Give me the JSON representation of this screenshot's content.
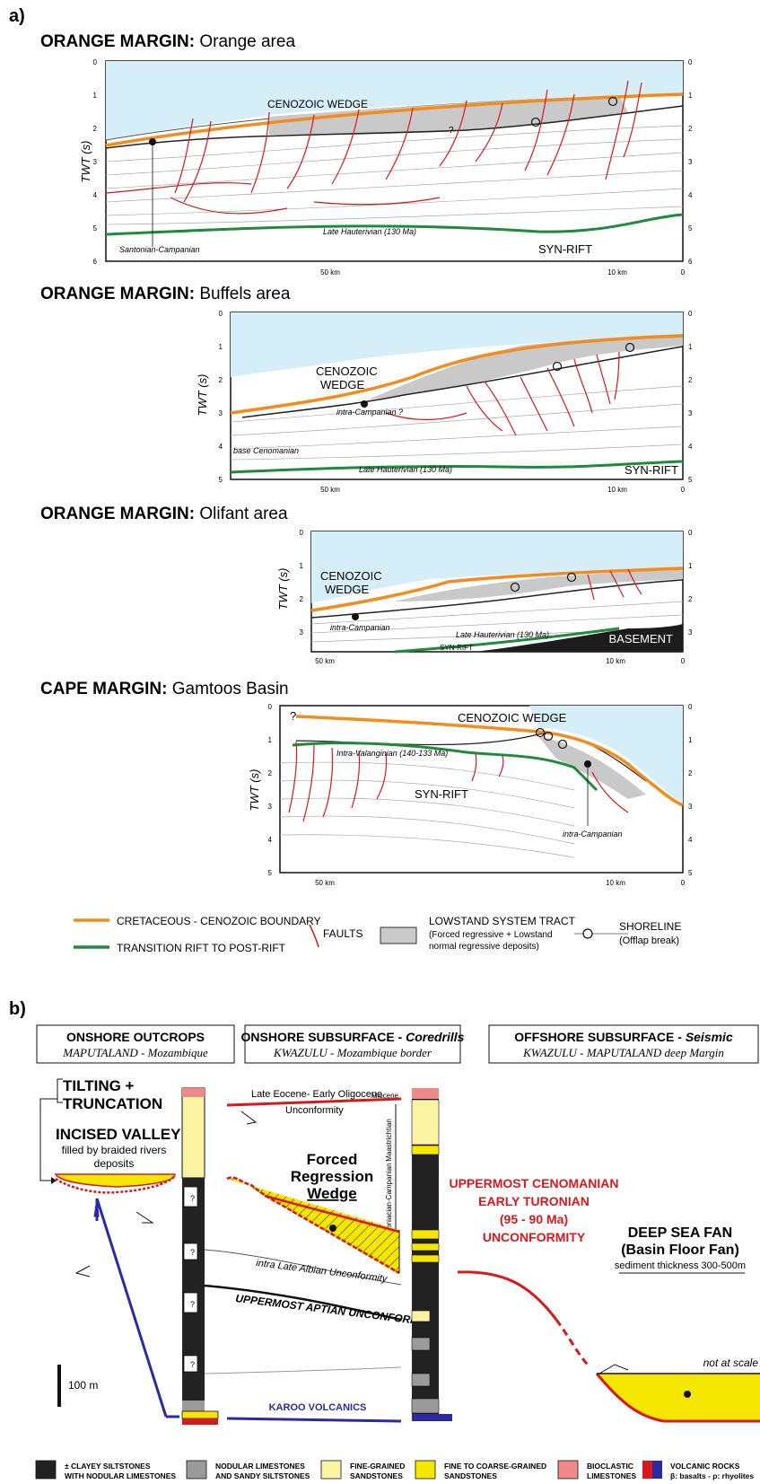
{
  "panel_a": {
    "label": "a)",
    "sections": [
      {
        "title_bold": "ORANGE MARGIN:",
        "title_rest": " Orange area",
        "depth_ticks": [
          "0",
          "1",
          "2",
          "3",
          "4",
          "5",
          "6"
        ],
        "axis_label": "TWT (s)",
        "distance_labels": [
          "50 km",
          "10 km",
          "0"
        ],
        "labels": {
          "wedge": "CENOZOIC  WEDGE",
          "hauterivian": "Late Hauterivian (130 Ma)",
          "synrift": "SYN-RIFT",
          "santonian": "Santonian-Campanian",
          "q": "?"
        }
      },
      {
        "title_bold": "ORANGE MARGIN:",
        "title_rest": " Buffels area",
        "depth_ticks": [
          "0",
          "1",
          "2",
          "3",
          "4",
          "5"
        ],
        "axis_label": "TWT (s)",
        "distance_labels": [
          "50 km",
          "10 km",
          "0"
        ],
        "labels": {
          "wedge1": "CENOZOIC",
          "wedge2": "WEDGE",
          "intra": "intra-Campanian ?",
          "cenomanian": "base Cenomanian",
          "hauterivian": "Late Hauterivian (130 Ma)",
          "synrift": "SYN-RIFT"
        }
      },
      {
        "title_bold": "ORANGE MARGIN:",
        "title_rest": " Olifant area",
        "depth_ticks": [
          "0",
          "1",
          "2",
          "3"
        ],
        "axis_label": "TWT (s)",
        "distance_labels": [
          "50 km",
          "10 km",
          "0"
        ],
        "labels": {
          "wedge1": "CENOZOIC",
          "wedge2": "WEDGE",
          "intra": "intra-Campanian",
          "hauterivian": "Late Hauterivian (130 Ma)",
          "synrift": "SYN-RIFT",
          "basement": "BASEMENT"
        }
      },
      {
        "title_bold": "CAPE MARGIN:",
        "title_rest": " Gamtoos Basin",
        "depth_ticks": [
          "0",
          "1",
          "2",
          "3",
          "4",
          "5"
        ],
        "axis_label": "TWT (s)",
        "distance_labels": [
          "50 km",
          "10 km",
          "0"
        ],
        "labels": {
          "wedge": "CENOZOIC WEDGE",
          "valanginian": "Intra-Valanginian (140-133 Ma)",
          "synrift": "SYN-RIFT",
          "intra": "intra-Campanian",
          "q": "?"
        }
      }
    ],
    "legend": {
      "cretaceous": "CRETACEOUS - CENOZOIC BOUNDARY",
      "transition": "TRANSITION RIFT TO POST-RIFT",
      "faults": "FAULTS",
      "lst1": "LOWSTAND SYSTEM TRACT",
      "lst2": "(Forced regressive + Lowstand",
      "lst3": "normal regressive deposits)",
      "shore1": "SHORELINE",
      "shore2": "(Offlap break)"
    },
    "colors": {
      "orange": "#f28c1e",
      "green": "#1e8a3c",
      "red": "#d7191c",
      "sea": "#d5eef8",
      "wedge": "#c9c9c9",
      "basement": "#1c1c1c"
    }
  },
  "panel_b": {
    "label": "b)",
    "headers": [
      {
        "title": "ONSHORE OUTCROPS",
        "sub": "MAPUTALAND - Mozambique"
      },
      {
        "title_bold": "ONSHORE SUBSURFACE - ",
        "title_it": "Coredrills",
        "sub": "KWAZULU - Mozambique border"
      },
      {
        "title_bold": "OFFSHORE SUBSURFACE - ",
        "title_it": "Seismic",
        "sub": "KWAZULU - MAPUTALAND deep Margin"
      }
    ],
    "labels": {
      "tilting1": "TILTING +",
      "tilting2": "TRUNCATION",
      "incised": "INCISED VALLEY",
      "filled1": "filled by braided rivers",
      "filled2": "deposits",
      "eocene": "Late Eocene- Early Oligocene",
      "unconf": "Unconformity",
      "miocene": "Miocene",
      "maastrichtian": "Maastrichtian",
      "coniacian": "Coniacian-Campanian",
      "frw1": "Forced",
      "frw2": "Regression",
      "frw3": "Wedge",
      "albian": "intra Late Albian Unconformity",
      "aptian": "UPPERMOST APTIAN UNCONFORMITY",
      "karoo": "KAROO VOLCANICS",
      "cen1": "UPPERMOST CENOMANIAN",
      "cen2": "EARLY TURONIAN",
      "cen3": "(95 - 90 Ma)",
      "cen4": "UNCONFORMITY",
      "dsf1": "DEEP SEA FAN",
      "dsf2": "(Basin Floor Fan)",
      "dsf3": "sediment thickness 300-500m",
      "notscale": "not at scale",
      "scale": "100 m",
      "q": "?"
    },
    "legend": [
      {
        "l1": "± CLAYEY SILTSTONES",
        "l2": "WITH NODULAR LIMESTONES",
        "color": "#222222"
      },
      {
        "l1": "NODULAR LIMESTONES",
        "l2": "AND SANDY SILTSTONES",
        "color": "#9a9a9a"
      },
      {
        "l1": "FINE-GRAINED",
        "l2": "SANDSTONES",
        "color": "#fbf3a4"
      },
      {
        "l1": "FINE TO COARSE-GRAINED",
        "l2": "SANDSTONES",
        "color": "#f5e600"
      },
      {
        "l1": "BIOCLASTIC",
        "l2": "LIMESTONES",
        "color": "#f08a8a"
      },
      {
        "l1": "VOLCANIC ROCKS",
        "l2": "β: basalts - ρ: rhyolites",
        "color": "#d7191c"
      }
    ],
    "colors": {
      "blue": "#2b2aa5",
      "yellow": "#f5e600",
      "paleyellow": "#fbf3a4"
    }
  }
}
